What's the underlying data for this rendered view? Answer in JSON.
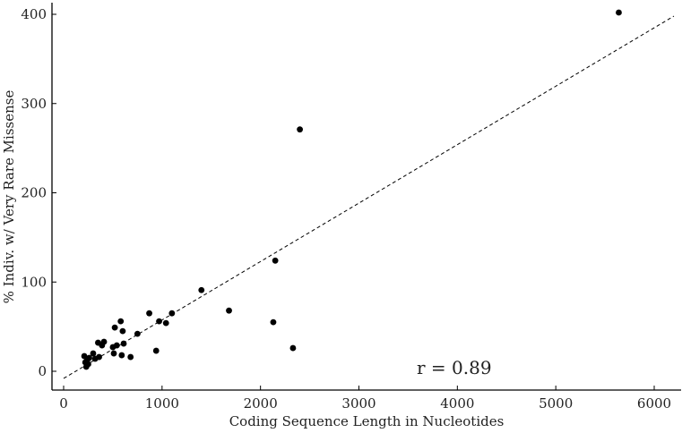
{
  "chart_data": {
    "type": "scatter",
    "title": "",
    "xlabel": "Coding Sequence Length in Nucleotides",
    "ylabel": "% Indiv. w/ Very Rare Missense",
    "xlim": [
      -100,
      6250
    ],
    "ylim": [
      -20,
      410
    ],
    "xticks": [
      0,
      1000,
      2000,
      3000,
      4000,
      5000,
      6000
    ],
    "yticks": [
      0,
      100,
      200,
      300,
      400
    ],
    "grid": false,
    "annotation": "r = 0.89",
    "trendline": {
      "x": [
        0,
        6200
      ],
      "y": [
        -8,
        398
      ]
    },
    "points": [
      {
        "x": 210,
        "y": 17
      },
      {
        "x": 220,
        "y": 10
      },
      {
        "x": 230,
        "y": 5
      },
      {
        "x": 240,
        "y": 13
      },
      {
        "x": 250,
        "y": 8
      },
      {
        "x": 260,
        "y": 15
      },
      {
        "x": 300,
        "y": 20
      },
      {
        "x": 320,
        "y": 14
      },
      {
        "x": 350,
        "y": 32
      },
      {
        "x": 360,
        "y": 16
      },
      {
        "x": 390,
        "y": 29
      },
      {
        "x": 410,
        "y": 33
      },
      {
        "x": 500,
        "y": 27
      },
      {
        "x": 510,
        "y": 20
      },
      {
        "x": 520,
        "y": 49
      },
      {
        "x": 540,
        "y": 29
      },
      {
        "x": 580,
        "y": 56
      },
      {
        "x": 590,
        "y": 18
      },
      {
        "x": 600,
        "y": 45
      },
      {
        "x": 610,
        "y": 31
      },
      {
        "x": 680,
        "y": 16
      },
      {
        "x": 750,
        "y": 42
      },
      {
        "x": 870,
        "y": 65
      },
      {
        "x": 940,
        "y": 23
      },
      {
        "x": 970,
        "y": 56
      },
      {
        "x": 1040,
        "y": 54
      },
      {
        "x": 1100,
        "y": 65
      },
      {
        "x": 1400,
        "y": 91
      },
      {
        "x": 1680,
        "y": 68
      },
      {
        "x": 2130,
        "y": 55
      },
      {
        "x": 2150,
        "y": 124
      },
      {
        "x": 2330,
        "y": 26
      },
      {
        "x": 2400,
        "y": 271
      },
      {
        "x": 5640,
        "y": 402
      }
    ]
  }
}
